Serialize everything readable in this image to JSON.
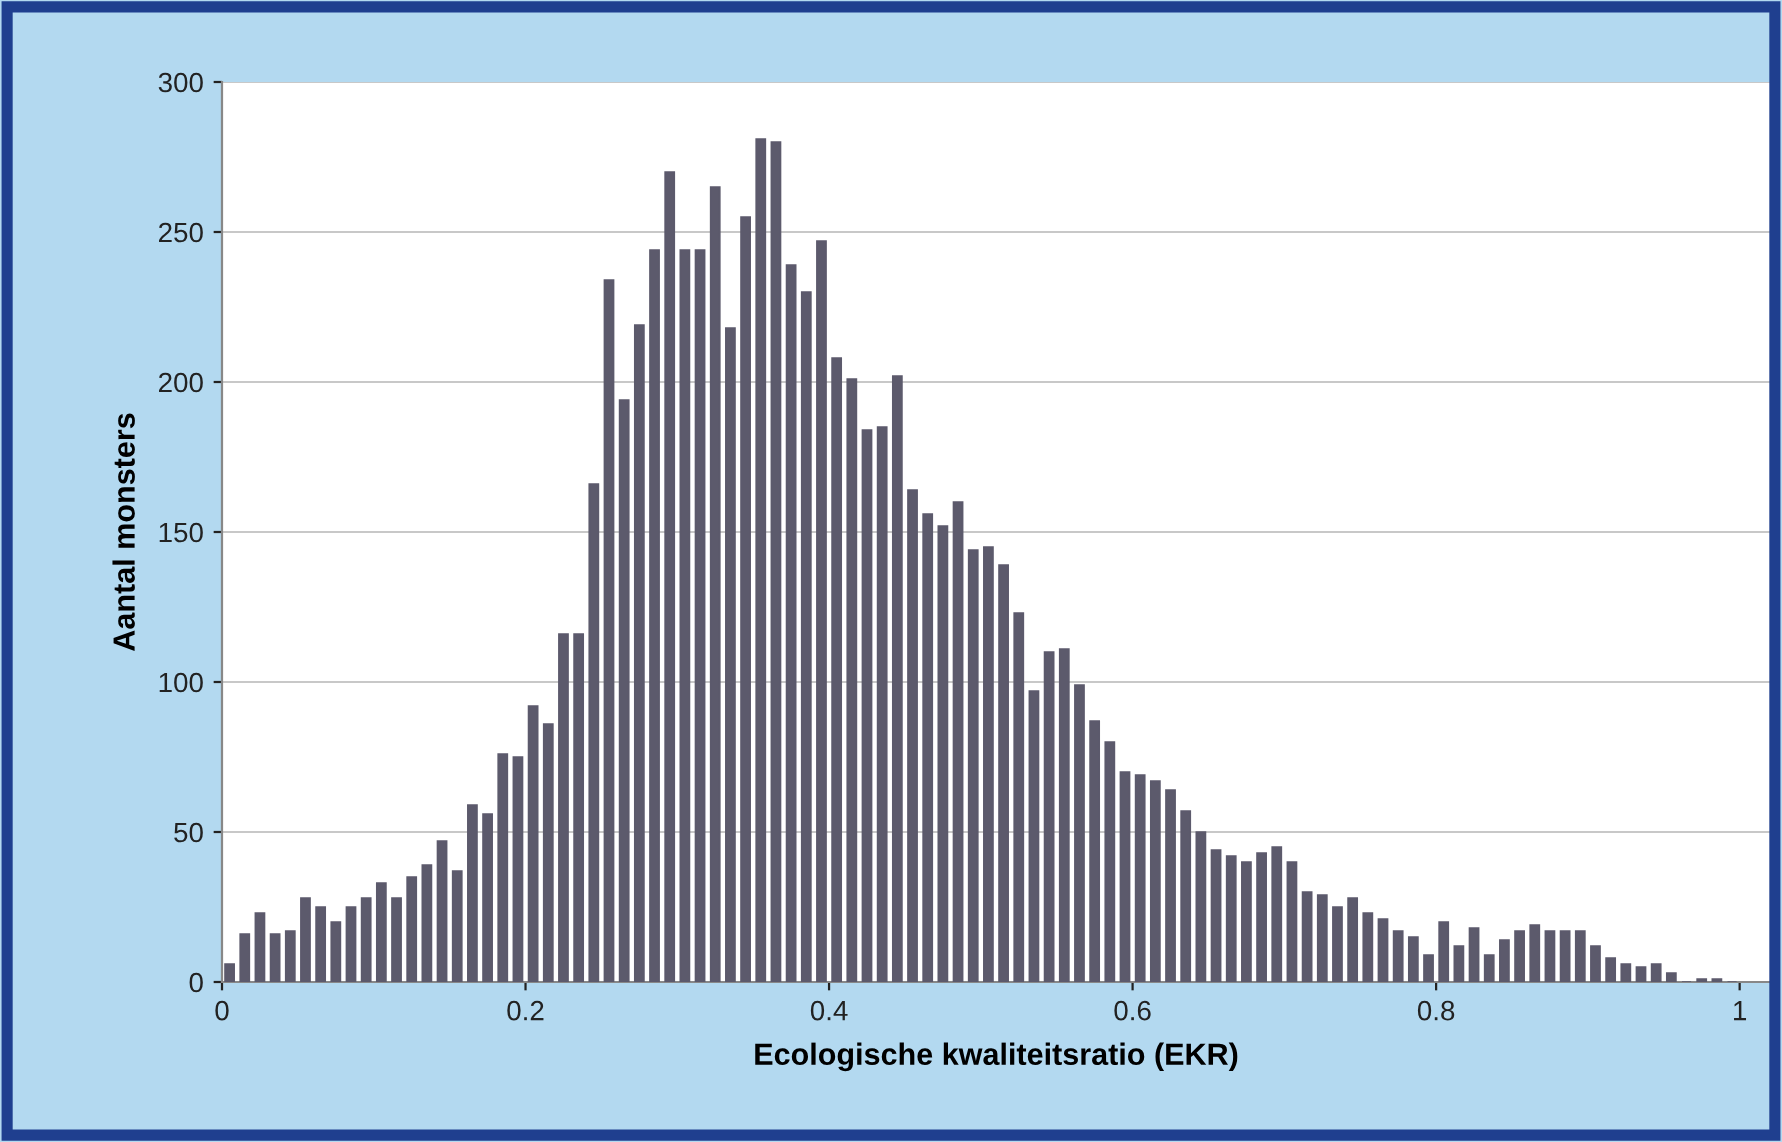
{
  "chart_data": {
    "type": "histogram",
    "xlabel": "Ecologische kwaliteitsratio (EKR)",
    "ylabel": "Aantal monsters",
    "bins": [
      0,
      0.01,
      0.02,
      0.03,
      0.04,
      0.05,
      0.06,
      0.07,
      0.08,
      0.09,
      0.1,
      0.11,
      0.12,
      0.13,
      0.14,
      0.15,
      0.16,
      0.17,
      0.18,
      0.19,
      0.2,
      0.21,
      0.22,
      0.23,
      0.24,
      0.25,
      0.26,
      0.27,
      0.28,
      0.29,
      0.3,
      0.31,
      0.32,
      0.33,
      0.34,
      0.35,
      0.36,
      0.37,
      0.38,
      0.39,
      0.4,
      0.41,
      0.42,
      0.43,
      0.44,
      0.45,
      0.46,
      0.47,
      0.48,
      0.49,
      0.5,
      0.51,
      0.52,
      0.53,
      0.54,
      0.55,
      0.56,
      0.57,
      0.58,
      0.59,
      0.6,
      0.61,
      0.62,
      0.63,
      0.64,
      0.65,
      0.66,
      0.67,
      0.68,
      0.69,
      0.7,
      0.71,
      0.72,
      0.73,
      0.74,
      0.75,
      0.76,
      0.77,
      0.78,
      0.79,
      0.8,
      0.81,
      0.82,
      0.83,
      0.84,
      0.85,
      0.86,
      0.87,
      0.88,
      0.89,
      0.9,
      0.91,
      0.92,
      0.93,
      0.94,
      0.95,
      0.96,
      0.97,
      0.98,
      0.99,
      1
    ],
    "values": [
      6,
      16,
      23,
      16,
      17,
      28,
      25,
      20,
      25,
      28,
      33,
      28,
      35,
      39,
      47,
      37,
      59,
      56,
      76,
      75,
      92,
      86,
      116,
      116,
      166,
      234,
      194,
      219,
      244,
      270,
      244,
      244,
      265,
      218,
      255,
      281,
      280,
      239,
      230,
      247,
      208,
      201,
      184,
      185,
      202,
      164,
      156,
      152,
      160,
      144,
      145,
      139,
      123,
      97,
      110,
      111,
      99,
      87,
      80,
      70,
      69,
      67,
      64,
      57,
      50,
      44,
      42,
      40,
      43,
      45,
      40,
      30,
      29,
      25,
      28,
      23,
      21,
      17,
      15,
      9,
      20,
      12,
      18,
      9,
      14,
      17,
      19,
      17,
      17,
      17,
      12,
      8,
      6,
      5,
      6,
      3,
      0,
      1,
      1,
      0
    ],
    "color": "#5c5a6c",
    "xlim": [
      0,
      1.02
    ],
    "xticks": [
      0,
      0.2,
      0.4,
      0.6,
      0.8,
      {
        "value": 1,
        "label": "1"
      }
    ],
    "ylim": [
      0,
      300
    ],
    "yticks": [
      0,
      50,
      100,
      150,
      200,
      250,
      300
    ],
    "grid": "y"
  }
}
